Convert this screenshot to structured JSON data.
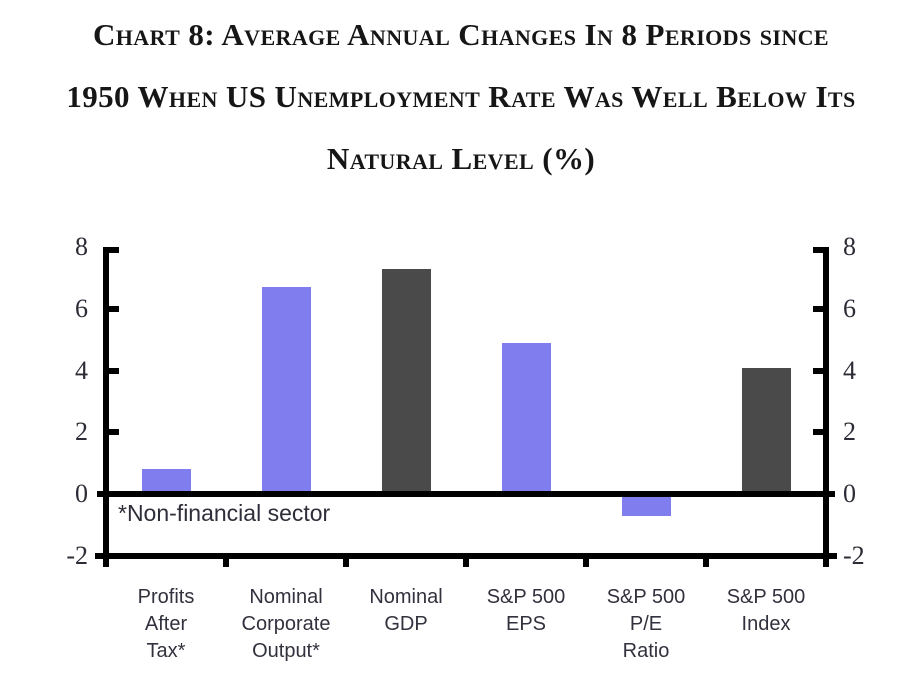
{
  "title": {
    "lines": [
      "Chart 8: Average Annual Changes In 8 Periods since",
      "1950 When US Unemployment Rate Was Well Below Its",
      "Natural Level (%)"
    ]
  },
  "chart_data": {
    "type": "bar",
    "title": "Chart 8: Average Annual Changes In 8 Periods since 1950 When US Unemployment Rate Was Well Below Its Natural Level (%)",
    "categories": [
      "Profits After Tax*",
      "Nominal Corporate Output*",
      "Nominal GDP",
      "S&P 500 EPS",
      "S&P 500 P/E Ratio",
      "S&P 500 Index"
    ],
    "category_label_lines": [
      [
        "Profits",
        "After",
        "Tax*"
      ],
      [
        "Nominal",
        "Corporate",
        "Output*"
      ],
      [
        "Nominal",
        "GDP"
      ],
      [
        "S&P 500",
        "EPS"
      ],
      [
        "S&P 500",
        "P/E",
        "Ratio"
      ],
      [
        "S&P 500",
        "Index"
      ]
    ],
    "slugs": [
      "profits-after-tax",
      "nominal-corporate-output",
      "nominal-gdp",
      "sp500-eps",
      "sp500-pe-ratio",
      "sp500-index"
    ],
    "values": [
      0.8,
      6.7,
      7.3,
      4.9,
      -0.7,
      4.1
    ],
    "bar_colors": [
      "#807DEE",
      "#807DEE",
      "#4A4A4A",
      "#807DEE",
      "#807DEE",
      "#4A4A4A"
    ],
    "colors": {
      "purple": "#807DEE",
      "dark_gray": "#4A4A4A",
      "axis": "#000000"
    },
    "ylim": [
      -2,
      8
    ],
    "yticks": [
      8,
      6,
      4,
      2,
      0,
      -2
    ],
    "dual_y_axis": true,
    "grid": false,
    "legend": "none",
    "xlabel": "",
    "ylabel": "",
    "annotation": "*Non-financial sector"
  }
}
